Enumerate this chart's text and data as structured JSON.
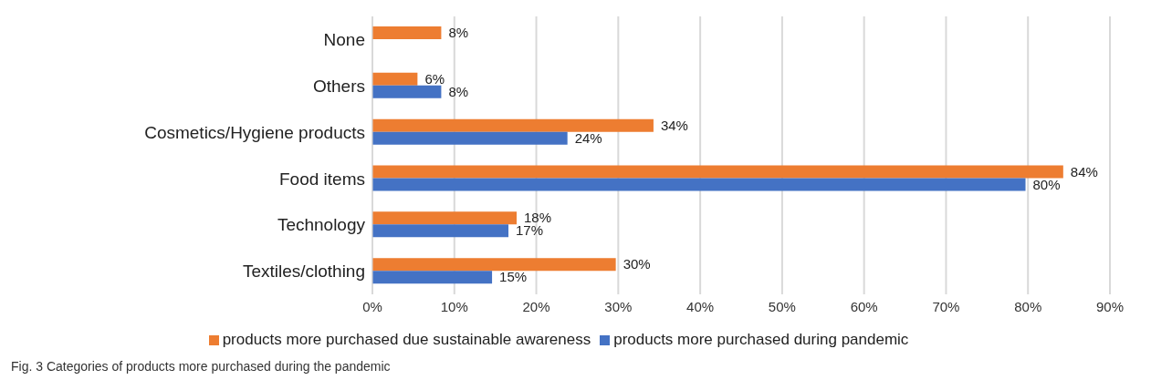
{
  "chart_data": {
    "type": "bar",
    "orientation": "horizontal",
    "categories": [
      "None",
      "Others",
      "Cosmetics/Hygiene products",
      "Food items",
      "Technology",
      "Textiles/clothing"
    ],
    "series": [
      {
        "name": "products more purchased due sustainable awareness",
        "color": "#ed7d31",
        "values": [
          8.4,
          5.5,
          34.3,
          84.3,
          17.6,
          29.7
        ],
        "value_labels": [
          "8%",
          "6%",
          "34%",
          "84%",
          "18%",
          "30%"
        ]
      },
      {
        "name": "products more purchased during pandemic",
        "color": "#4472c4",
        "values": [
          null,
          8.4,
          23.8,
          79.7,
          16.6,
          14.6
        ],
        "value_labels": [
          null,
          "8%",
          "24%",
          "80%",
          "17%",
          "15%"
        ]
      }
    ],
    "xlim": [
      0,
      90
    ],
    "xticks": [
      {
        "value": 0,
        "label": "0%"
      },
      {
        "value": 10,
        "label": "10%"
      },
      {
        "value": 20,
        "label": "20%"
      },
      {
        "value": 30,
        "label": "30%"
      },
      {
        "value": 40,
        "label": "40%"
      },
      {
        "value": 50,
        "label": "50%"
      },
      {
        "value": 60,
        "label": "60%"
      },
      {
        "value": 70,
        "label": "70%"
      },
      {
        "value": 80,
        "label": "80%"
      },
      {
        "value": 90,
        "label": "90%"
      }
    ],
    "grid": "x",
    "legend": "bottom",
    "annotations": [
      "Fig. 3 Categories of products more purchased during the pandemic"
    ]
  }
}
